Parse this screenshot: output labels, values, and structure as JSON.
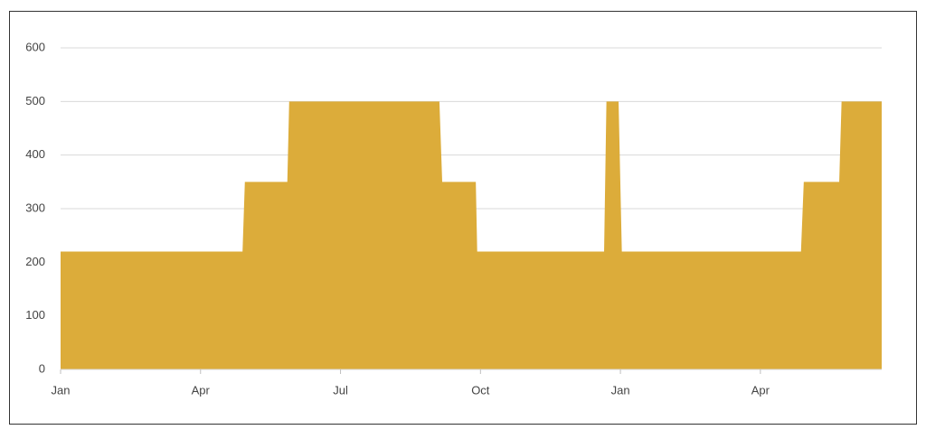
{
  "chart_data": {
    "type": "area",
    "x": [
      0,
      3.9,
      3.95,
      4.86,
      4.9,
      8.12,
      8.18,
      8.9,
      8.93,
      11.65,
      11.7,
      11.96,
      12.03,
      15.87,
      15.93,
      16.69,
      16.74,
      17.6
    ],
    "values": [
      220,
      220,
      350,
      350,
      500,
      500,
      350,
      350,
      220,
      220,
      500,
      500,
      220,
      220,
      350,
      350,
      500,
      500
    ],
    "color": "#dcac3a",
    "xlim": [
      0,
      17.6
    ],
    "xticks": [
      {
        "value": 0,
        "label": "Jan"
      },
      {
        "value": 3,
        "label": "Apr"
      },
      {
        "value": 6,
        "label": "Jul"
      },
      {
        "value": 9,
        "label": "Oct"
      },
      {
        "value": 12,
        "label": "Jan"
      },
      {
        "value": 15,
        "label": "Apr"
      }
    ],
    "ylim": [
      0,
      600
    ],
    "yticks": [
      0,
      100,
      200,
      300,
      400,
      500,
      600
    ],
    "grid": true
  }
}
